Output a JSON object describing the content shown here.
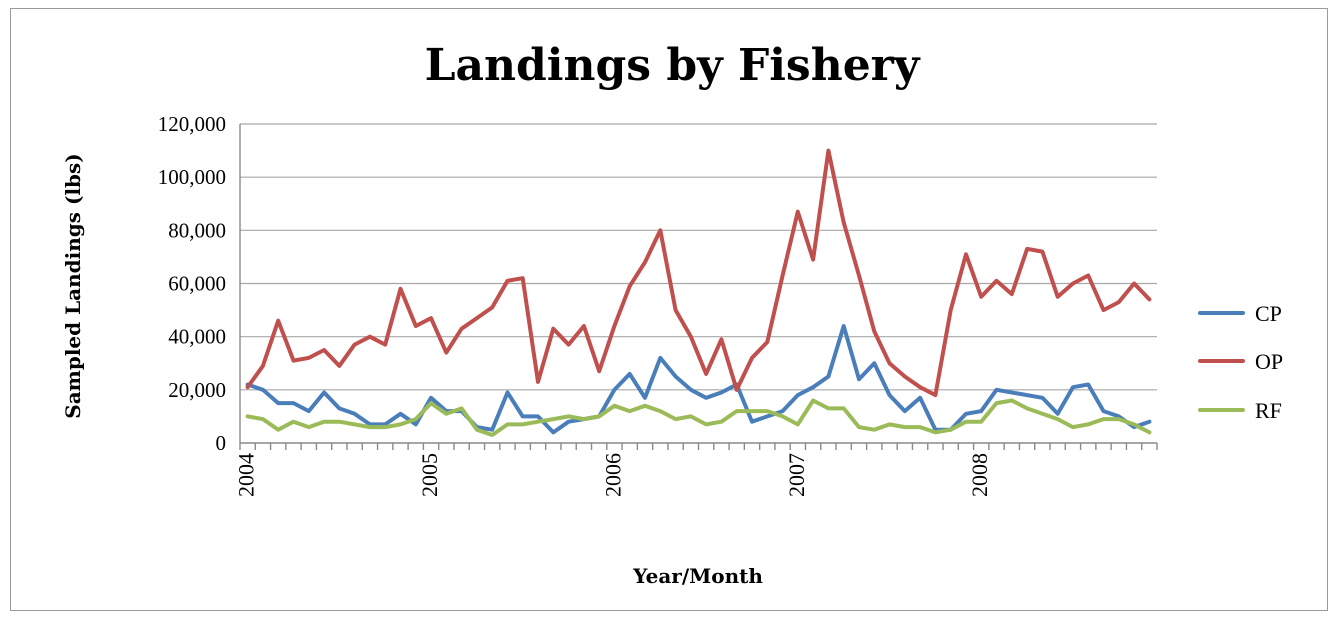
{
  "chart_data": {
    "type": "line",
    "title": "Landings by Fishery",
    "xlabel": "Year/Month",
    "ylabel": "Sampled Landings (lbs)",
    "ylim": [
      0,
      120000
    ],
    "yticks": [
      0,
      20000,
      40000,
      60000,
      80000,
      100000,
      120000
    ],
    "ytick_labels": [
      "0",
      "20,000",
      "40,000",
      "60,000",
      "80,000",
      "100,000",
      "120,000"
    ],
    "xtick_labels": [
      "2004",
      "2005",
      "2006",
      "2007",
      "2008"
    ],
    "x_start": "2004-01",
    "x_count": 60,
    "x_interval": "month",
    "grid": true,
    "legend_position": "right",
    "series": [
      {
        "name": "CP",
        "color": "#4a7ebb",
        "values": [
          22000,
          20000,
          15000,
          15000,
          12000,
          19000,
          13000,
          11000,
          7000,
          7000,
          11000,
          7000,
          17000,
          12000,
          12000,
          6000,
          5000,
          19000,
          10000,
          10000,
          4000,
          8000,
          9000,
          10000,
          20000,
          26000,
          17000,
          32000,
          25000,
          20000,
          17000,
          19000,
          22000,
          8000,
          10000,
          12000,
          18000,
          21000,
          25000,
          44000,
          24000,
          30000,
          18000,
          12000,
          17000,
          5000,
          5000,
          11000,
          12000,
          20000,
          19000,
          18000,
          17000,
          11000,
          21000,
          22000,
          12000,
          10000,
          6000,
          8000
        ]
      },
      {
        "name": "OP",
        "color": "#c0504d",
        "values": [
          21000,
          29000,
          46000,
          31000,
          32000,
          35000,
          29000,
          37000,
          40000,
          37000,
          58000,
          44000,
          47000,
          34000,
          43000,
          47000,
          51000,
          61000,
          62000,
          23000,
          43000,
          37000,
          44000,
          27000,
          44000,
          59000,
          68000,
          80000,
          50000,
          40000,
          26000,
          39000,
          20000,
          32000,
          38000,
          63000,
          87000,
          69000,
          110000,
          83000,
          63000,
          42000,
          30000,
          25000,
          21000,
          18000,
          50000,
          71000,
          55000,
          61000,
          56000,
          73000,
          72000,
          55000,
          60000,
          63000,
          50000,
          53000,
          60000,
          54000
        ]
      },
      {
        "name": "RF",
        "color": "#9bbb59",
        "values": [
          10000,
          9000,
          5000,
          8000,
          6000,
          8000,
          8000,
          7000,
          6000,
          6000,
          7000,
          9000,
          15000,
          11000,
          13000,
          5000,
          3000,
          7000,
          7000,
          8000,
          9000,
          10000,
          9000,
          10000,
          14000,
          12000,
          14000,
          12000,
          9000,
          10000,
          7000,
          8000,
          12000,
          12000,
          12000,
          10000,
          7000,
          16000,
          13000,
          13000,
          6000,
          5000,
          7000,
          6000,
          6000,
          4000,
          5000,
          8000,
          8000,
          15000,
          16000,
          13000,
          11000,
          9000,
          6000,
          7000,
          9000,
          9000,
          7000,
          4000
        ]
      }
    ]
  }
}
